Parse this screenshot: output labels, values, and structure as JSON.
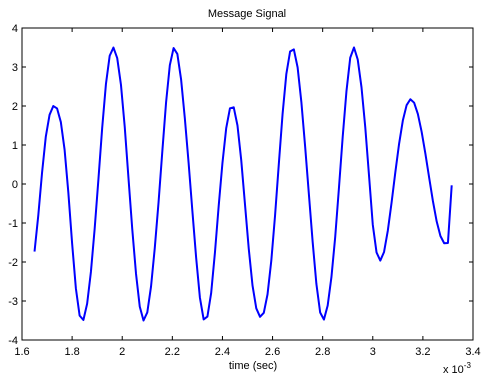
{
  "chart_data": {
    "type": "line",
    "title": "Message Signal",
    "xlabel": "time (sec)",
    "ylabel": "",
    "x_multiplier": "x 10",
    "x_multiplier_exponent": "-3",
    "xlim": [
      1.6,
      3.4
    ],
    "ylim": [
      -4,
      4
    ],
    "grid": false,
    "x_ticks": [
      1.6,
      1.8,
      2.0,
      2.2,
      2.4,
      2.6,
      2.8,
      3.0,
      3.2,
      3.4
    ],
    "x_tick_labels": [
      "1.6",
      "1.8",
      "2",
      "2.2",
      "2.4",
      "2.6",
      "2.8",
      "3",
      "3.2",
      "3.4"
    ],
    "y_ticks": [
      4,
      3,
      2,
      1,
      0,
      -1,
      -2,
      -3,
      -4
    ],
    "y_tick_labels": [
      "4",
      "3",
      "2",
      "1",
      "0",
      "-1",
      "-2",
      "-3",
      "-4"
    ],
    "colors": {
      "line": "#0000ff",
      "axes": "#000000"
    },
    "series": [
      {
        "x": [
          1.65,
          1.665,
          1.68,
          1.695,
          1.71,
          1.725,
          1.74,
          1.755,
          1.77,
          1.785,
          1.8,
          1.815,
          1.83,
          1.845,
          1.86,
          1.875,
          1.89,
          1.905,
          1.92,
          1.935,
          1.95,
          1.965,
          1.98,
          1.995,
          2.01,
          2.025,
          2.04,
          2.055,
          2.07,
          2.085,
          2.1,
          2.115,
          2.13,
          2.145,
          2.16,
          2.175,
          2.19,
          2.205,
          2.22,
          2.235,
          2.25,
          2.265,
          2.28,
          2.295,
          2.31,
          2.325,
          2.34,
          2.355,
          2.37,
          2.385,
          2.4,
          2.415,
          2.43,
          2.445,
          2.46,
          2.475,
          2.49,
          2.505,
          2.52,
          2.535,
          2.55,
          2.565,
          2.58,
          2.595,
          2.61,
          2.625,
          2.64,
          2.655,
          2.67,
          2.685,
          2.7,
          2.715,
          2.73,
          2.745,
          2.76,
          2.775,
          2.79,
          2.805,
          2.82,
          2.835,
          2.85,
          2.865,
          2.88,
          2.895,
          2.91,
          2.925,
          2.94,
          2.955,
          2.97,
          2.985,
          3.0,
          3.015,
          3.03,
          3.045,
          3.06,
          3.075,
          3.09,
          3.105,
          3.12,
          3.135,
          3.15,
          3.165,
          3.18,
          3.195,
          3.21,
          3.225,
          3.24,
          3.255,
          3.27,
          3.285,
          3.3,
          3.315
        ],
        "y": [
          -1.732,
          -0.805,
          0.287,
          1.214,
          1.774,
          1.999,
          1.937,
          1.588,
          0.88,
          -0.221,
          -1.521,
          -2.676,
          -3.376,
          -3.488,
          -3.069,
          -2.256,
          -1.15,
          0.121,
          1.436,
          2.564,
          3.288,
          3.499,
          3.229,
          2.542,
          1.467,
          0.146,
          -1.153,
          -2.297,
          -3.144,
          -3.5,
          -3.294,
          -2.627,
          -1.638,
          -0.469,
          0.833,
          2.091,
          3.047,
          3.486,
          3.335,
          2.68,
          1.678,
          0.536,
          -0.694,
          -1.89,
          -2.911,
          -3.473,
          -3.4,
          -2.793,
          -1.761,
          -0.562,
          0.536,
          1.43,
          1.94,
          1.967,
          1.5,
          0.609,
          -0.524,
          -1.658,
          -2.601,
          -3.188,
          -3.406,
          -3.302,
          -2.827,
          -1.966,
          -0.807,
          0.513,
          1.797,
          2.823,
          3.397,
          3.451,
          2.99,
          2.1,
          0.962,
          -0.264,
          -1.481,
          -2.565,
          -3.295,
          -3.476,
          -3.114,
          -2.386,
          -1.363,
          -0.101,
          1.212,
          2.382,
          3.238,
          3.5,
          3.19,
          2.479,
          1.457,
          0.217,
          -1.044,
          -1.755,
          -1.963,
          -1.743,
          -1.197,
          -0.477,
          0.301,
          1.031,
          1.627,
          2.021,
          2.173,
          2.085,
          1.793,
          1.338,
          0.777,
          0.164,
          -0.438,
          -0.959,
          -1.333,
          -1.519,
          -1.512,
          -0.033
        ]
      }
    ]
  }
}
